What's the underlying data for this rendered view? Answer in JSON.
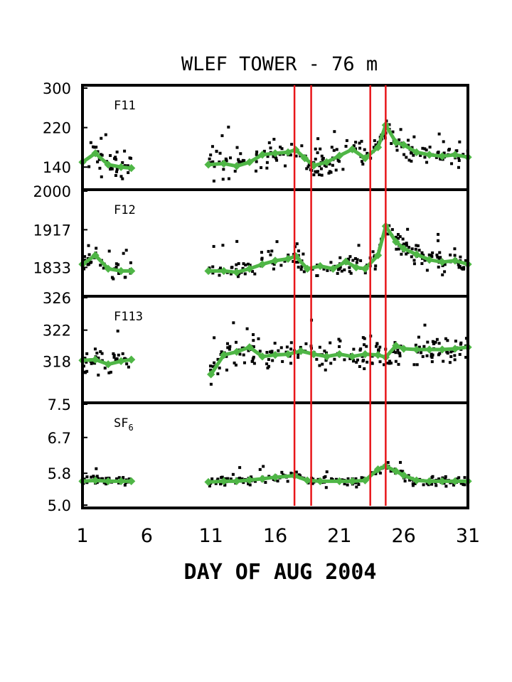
{
  "chart_data": {
    "type": "scatter",
    "title": "WLEF TOWER - 76 m",
    "xlabel": "DAY OF AUG 2004",
    "xlim": [
      1,
      31
    ],
    "x_ticks": [
      "1",
      "6",
      "11",
      "16",
      "21",
      "26",
      "31"
    ],
    "x_tick_values": [
      1,
      6,
      11,
      16,
      21,
      26,
      31
    ],
    "vertical_lines_x": [
      17.5,
      18.8,
      23.4,
      24.6
    ],
    "vertical_line_color": "#e8161a",
    "point_color": "#000000",
    "smooth_color": "#4fb646",
    "panels": [
      {
        "label": "F11",
        "ylim": [
          100,
          300
        ],
        "yticks": [
          {
            "v": 300,
            "t": "300"
          },
          {
            "v": 220,
            "t": "220"
          },
          {
            "v": 140,
            "t": "140"
          }
        ],
        "spread": 20,
        "smooth": [
          [
            1,
            150
          ],
          [
            2,
            168
          ],
          [
            3,
            145
          ],
          [
            4,
            140
          ],
          [
            4.8,
            138
          ],
          [
            10.8,
            145
          ],
          [
            12,
            147
          ],
          [
            13,
            142
          ],
          [
            14,
            150
          ],
          [
            15,
            165
          ],
          [
            16,
            168
          ],
          [
            17,
            170
          ],
          [
            17.6,
            175
          ],
          [
            18.3,
            158
          ],
          [
            19,
            143
          ],
          [
            20,
            150
          ],
          [
            21,
            163
          ],
          [
            22,
            176
          ],
          [
            23,
            158
          ],
          [
            24,
            180
          ],
          [
            24.6,
            225
          ],
          [
            25.4,
            190
          ],
          [
            26,
            185
          ],
          [
            27,
            170
          ],
          [
            28,
            165
          ],
          [
            29,
            162
          ],
          [
            30,
            165
          ],
          [
            31,
            160
          ]
        ]
      },
      {
        "label": "F12",
        "ylim": [
          1775,
          2000
        ],
        "yticks": [
          {
            "v": 2000,
            "t": "2000"
          },
          {
            "v": 1917,
            "t": "1917"
          },
          {
            "v": 1833,
            "t": "1833"
          }
        ],
        "spread": 18,
        "smooth": [
          [
            1,
            1840
          ],
          [
            2,
            1860
          ],
          [
            3,
            1830
          ],
          [
            4,
            1825
          ],
          [
            4.8,
            1825
          ],
          [
            10.8,
            1825
          ],
          [
            12,
            1825
          ],
          [
            13,
            1822
          ],
          [
            14,
            1830
          ],
          [
            15,
            1840
          ],
          [
            16,
            1848
          ],
          [
            17,
            1852
          ],
          [
            17.6,
            1858
          ],
          [
            18.5,
            1830
          ],
          [
            19.5,
            1836
          ],
          [
            20.5,
            1830
          ],
          [
            21.5,
            1846
          ],
          [
            22.3,
            1833
          ],
          [
            23,
            1830
          ],
          [
            24,
            1860
          ],
          [
            24.6,
            1925
          ],
          [
            25.4,
            1890
          ],
          [
            26,
            1875
          ],
          [
            27,
            1862
          ],
          [
            28,
            1850
          ],
          [
            29,
            1845
          ],
          [
            30,
            1848
          ],
          [
            31,
            1840
          ]
        ]
      },
      {
        "label": "F113",
        "ylim": [
          313,
          326
        ],
        "yticks": [
          {
            "v": 326,
            "t": "326"
          },
          {
            "v": 322,
            "t": "322"
          },
          {
            "v": 318,
            "t": "318"
          }
        ],
        "spread": 1.4,
        "smooth": [
          [
            1,
            318.1
          ],
          [
            2,
            318.2
          ],
          [
            3,
            317.6
          ],
          [
            4,
            318.0
          ],
          [
            4.8,
            318.2
          ],
          [
            11,
            316.3
          ],
          [
            12,
            318.8
          ],
          [
            13,
            319.2
          ],
          [
            14,
            319.8
          ],
          [
            15,
            318.6
          ],
          [
            16,
            318.8
          ],
          [
            17,
            318.9
          ],
          [
            18,
            319.3
          ],
          [
            19,
            318.9
          ],
          [
            20,
            318.6
          ],
          [
            21,
            318.9
          ],
          [
            22,
            318.6
          ],
          [
            23,
            318.9
          ],
          [
            24,
            318.8
          ],
          [
            24.6,
            318.5
          ],
          [
            25.4,
            320.0
          ],
          [
            26,
            319.6
          ],
          [
            27,
            319.5
          ],
          [
            28,
            319.5
          ],
          [
            29,
            319.5
          ],
          [
            30,
            319.6
          ],
          [
            31,
            319.8
          ]
        ]
      },
      {
        "label": "SF",
        "label_sub": "6",
        "ylim": [
          5.0,
          7.5
        ],
        "yticks": [
          {
            "v": 7.5,
            "t": "7.5"
          },
          {
            "v": 6.7,
            "t": "6.7"
          },
          {
            "v": 5.8,
            "t": "5.8"
          },
          {
            "v": 5.0,
            "t": "5.0"
          }
        ],
        "spread": 0.09,
        "smooth": [
          [
            1,
            5.6
          ],
          [
            2,
            5.62
          ],
          [
            3,
            5.6
          ],
          [
            4,
            5.6
          ],
          [
            4.8,
            5.6
          ],
          [
            10.8,
            5.58
          ],
          [
            12,
            5.6
          ],
          [
            13,
            5.6
          ],
          [
            14,
            5.63
          ],
          [
            15,
            5.66
          ],
          [
            16,
            5.7
          ],
          [
            17.5,
            5.74
          ],
          [
            18.5,
            5.62
          ],
          [
            19.5,
            5.6
          ],
          [
            21,
            5.6
          ],
          [
            22,
            5.6
          ],
          [
            23,
            5.62
          ],
          [
            24,
            5.9
          ],
          [
            24.6,
            5.98
          ],
          [
            25.4,
            5.85
          ],
          [
            26,
            5.75
          ],
          [
            27,
            5.62
          ],
          [
            28,
            5.6
          ],
          [
            29,
            5.6
          ],
          [
            30,
            5.6
          ],
          [
            31,
            5.6
          ]
        ]
      }
    ]
  }
}
